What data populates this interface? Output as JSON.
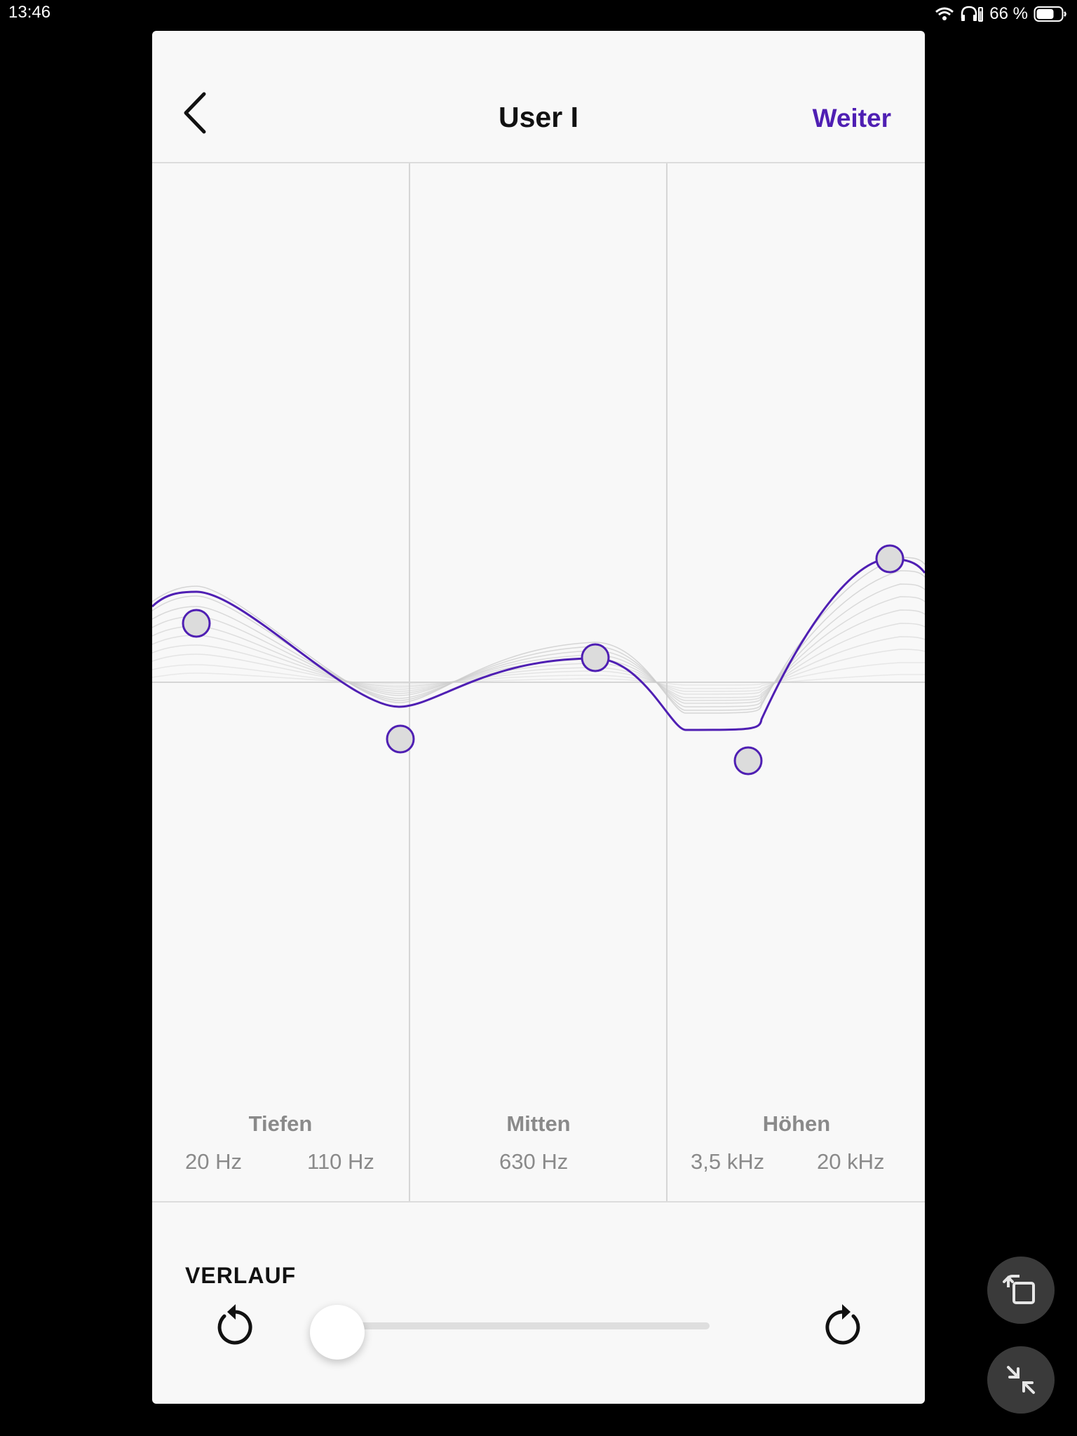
{
  "status_bar": {
    "time": "13:46",
    "battery_percent": "66 %",
    "icons": [
      "wifi-icon",
      "headphones-icon",
      "battery-icon"
    ]
  },
  "header": {
    "title": "User I",
    "next_label": "Weiter",
    "back_icon": "chevron-left-icon"
  },
  "eq": {
    "bands": [
      {
        "name": "Tiefen",
        "freqs": [
          "20 Hz",
          "110 Hz"
        ]
      },
      {
        "name": "Mitten",
        "freqs": [
          "630 Hz"
        ]
      },
      {
        "name": "Höhen",
        "freqs": [
          "3,5 kHz",
          "20 kHz"
        ]
      }
    ],
    "accent_color": "#4f1fb3",
    "handle_color": "#dcdcdc"
  },
  "history": {
    "title": "VERLAUF",
    "position": 0,
    "undo_icon": "undo-icon",
    "redo_icon": "redo-icon"
  },
  "floating_buttons": [
    "rotate-screen-icon",
    "minimize-icon"
  ]
}
